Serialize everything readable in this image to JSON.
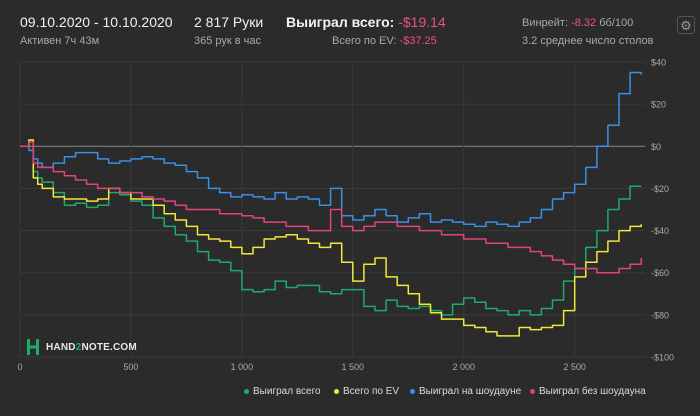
{
  "header": {
    "date_range": "09.10.2020 - 10.10.2020",
    "active_time": "Активен 7ч 43м",
    "hands": "2 817 Руки",
    "hands_per_hour": "365 рук в час",
    "won_total_label": "Выиграл всего:",
    "won_total_value": "-$19.14",
    "ev_total_label": "Всего по EV:",
    "ev_total_value": "-$37.25",
    "winrate_label": "Винрейт:",
    "winrate_value": "-8.32",
    "winrate_unit": "бб/100",
    "avg_tables": "3.2 среднее число столов",
    "settings_icon": "gear-icon"
  },
  "logo": {
    "text_part1": "HAND",
    "text_part2": "2",
    "text_part3": "NOTE.COM",
    "icon": "hand2note-logo-icon"
  },
  "colors": {
    "background": "#2b2b2b",
    "grid": "#3a3a3a",
    "zero_line": "#8a8a8a",
    "green": "#1faa6c",
    "yellow": "#f0e83a",
    "blue": "#3a8fe8",
    "pink": "#e0457a",
    "negative_text": "#f0507c"
  },
  "chart_data": {
    "type": "line",
    "xlim": [
      0,
      2817
    ],
    "ylim": [
      -100,
      40
    ],
    "x_ticks": [
      0,
      500,
      1000,
      1500,
      2000,
      2500
    ],
    "x_tick_labels": [
      "0",
      "500",
      "1 000",
      "1 500",
      "2 000",
      "2 500"
    ],
    "y_ticks": [
      40,
      20,
      0,
      -20,
      -40,
      -60,
      -80,
      -100
    ],
    "y_tick_labels": [
      "$40",
      "$20",
      "$0",
      "-$20",
      "-$40",
      "-$60",
      "-$80",
      "-$100"
    ],
    "grid": true,
    "legend_position": "bottom-right",
    "series": [
      {
        "name": "Выиграл всего",
        "color": "#1faa6c",
        "x": [
          0,
          40,
          60,
          80,
          100,
          150,
          200,
          250,
          300,
          350,
          400,
          450,
          500,
          550,
          600,
          650,
          700,
          750,
          800,
          850,
          900,
          950,
          1000,
          1050,
          1100,
          1150,
          1200,
          1250,
          1300,
          1350,
          1400,
          1450,
          1500,
          1550,
          1600,
          1650,
          1700,
          1750,
          1800,
          1850,
          1900,
          1950,
          2000,
          2050,
          2100,
          2150,
          2200,
          2250,
          2300,
          2350,
          2400,
          2450,
          2500,
          2550,
          2600,
          2650,
          2700,
          2750,
          2800
        ],
        "y": [
          0,
          3,
          -12,
          -15,
          -17,
          -22,
          -28,
          -27,
          -29,
          -28,
          -22,
          -23,
          -26,
          -28,
          -34,
          -38,
          -42,
          -45,
          -50,
          -54,
          -55,
          -59,
          -68,
          -69,
          -68,
          -64,
          -67,
          -66,
          -66,
          -69,
          -70,
          -68,
          -68,
          -76,
          -78,
          -73,
          -76,
          -77,
          -76,
          -78,
          -80,
          -75,
          -72,
          -74,
          -77,
          -78,
          -80,
          -78,
          -80,
          -77,
          -73,
          -64,
          -58,
          -48,
          -40,
          -30,
          -25,
          -19,
          -19
        ]
      },
      {
        "name": "Всего по EV",
        "color": "#f0e83a",
        "x": [
          0,
          40,
          60,
          80,
          100,
          150,
          200,
          250,
          300,
          350,
          400,
          450,
          500,
          550,
          600,
          650,
          700,
          750,
          800,
          850,
          900,
          950,
          1000,
          1050,
          1100,
          1150,
          1200,
          1250,
          1300,
          1350,
          1400,
          1450,
          1500,
          1550,
          1600,
          1650,
          1700,
          1750,
          1800,
          1850,
          1900,
          1950,
          2000,
          2050,
          2100,
          2150,
          2200,
          2250,
          2300,
          2350,
          2400,
          2450,
          2500,
          2550,
          2600,
          2650,
          2700,
          2750,
          2800
        ],
        "y": [
          0,
          3,
          -15,
          -18,
          -20,
          -24,
          -25,
          -25,
          -26,
          -25,
          -20,
          -22,
          -25,
          -25,
          -28,
          -32,
          -35,
          -38,
          -42,
          -44,
          -45,
          -48,
          -51,
          -48,
          -44,
          -43,
          -42,
          -44,
          -46,
          -48,
          -46,
          -55,
          -64,
          -56,
          -53,
          -62,
          -66,
          -70,
          -75,
          -79,
          -82,
          -82,
          -85,
          -86,
          -88,
          -90,
          -90,
          -86,
          -87,
          -86,
          -85,
          -78,
          -62,
          -55,
          -50,
          -45,
          -40,
          -38,
          -37
        ]
      },
      {
        "name": "Выиграл на шоудауне",
        "color": "#3a8fe8",
        "x": [
          0,
          40,
          60,
          80,
          100,
          150,
          200,
          250,
          300,
          350,
          400,
          450,
          500,
          550,
          600,
          650,
          700,
          750,
          800,
          850,
          900,
          950,
          1000,
          1050,
          1100,
          1150,
          1200,
          1250,
          1300,
          1350,
          1400,
          1450,
          1500,
          1550,
          1600,
          1650,
          1700,
          1750,
          1800,
          1850,
          1900,
          1950,
          2000,
          2050,
          2100,
          2150,
          2200,
          2250,
          2300,
          2350,
          2400,
          2450,
          2500,
          2550,
          2600,
          2650,
          2700,
          2750,
          2800
        ],
        "y": [
          0,
          -2,
          -6,
          -8,
          -10,
          -8,
          -5,
          -3,
          -3,
          -6,
          -8,
          -7,
          -6,
          -5,
          -6,
          -8,
          -9,
          -12,
          -15,
          -20,
          -22,
          -24,
          -23,
          -24,
          -25,
          -22,
          -25,
          -24,
          -25,
          -28,
          -20,
          -33,
          -35,
          -33,
          -30,
          -33,
          -36,
          -34,
          -32,
          -36,
          -35,
          -36,
          -37,
          -38,
          -36,
          -37,
          -38,
          -36,
          -34,
          -30,
          -25,
          -22,
          -18,
          -10,
          0,
          10,
          25,
          35,
          34
        ]
      },
      {
        "name": "Выиграл без шоудауна",
        "color": "#e0457a",
        "x": [
          0,
          40,
          60,
          80,
          100,
          150,
          200,
          250,
          300,
          350,
          400,
          450,
          500,
          550,
          600,
          650,
          700,
          750,
          800,
          850,
          900,
          950,
          1000,
          1050,
          1100,
          1150,
          1200,
          1250,
          1300,
          1350,
          1400,
          1450,
          1500,
          1550,
          1600,
          1650,
          1700,
          1750,
          1800,
          1850,
          1900,
          1950,
          2000,
          2050,
          2100,
          2150,
          2200,
          2250,
          2300,
          2350,
          2400,
          2450,
          2500,
          2550,
          2600,
          2650,
          2700,
          2750,
          2800
        ],
        "y": [
          0,
          2,
          -8,
          -10,
          -10,
          -12,
          -14,
          -16,
          -18,
          -20,
          -20,
          -22,
          -22,
          -24,
          -25,
          -26,
          -28,
          -30,
          -30,
          -30,
          -32,
          -32,
          -33,
          -34,
          -36,
          -36,
          -38,
          -38,
          -40,
          -40,
          -30,
          -38,
          -40,
          -38,
          -36,
          -36,
          -38,
          -38,
          -40,
          -40,
          -42,
          -42,
          -44,
          -44,
          -46,
          -46,
          -48,
          -48,
          -50,
          -52,
          -54,
          -56,
          -58,
          -58,
          -60,
          -60,
          -58,
          -56,
          -53
        ]
      }
    ]
  }
}
